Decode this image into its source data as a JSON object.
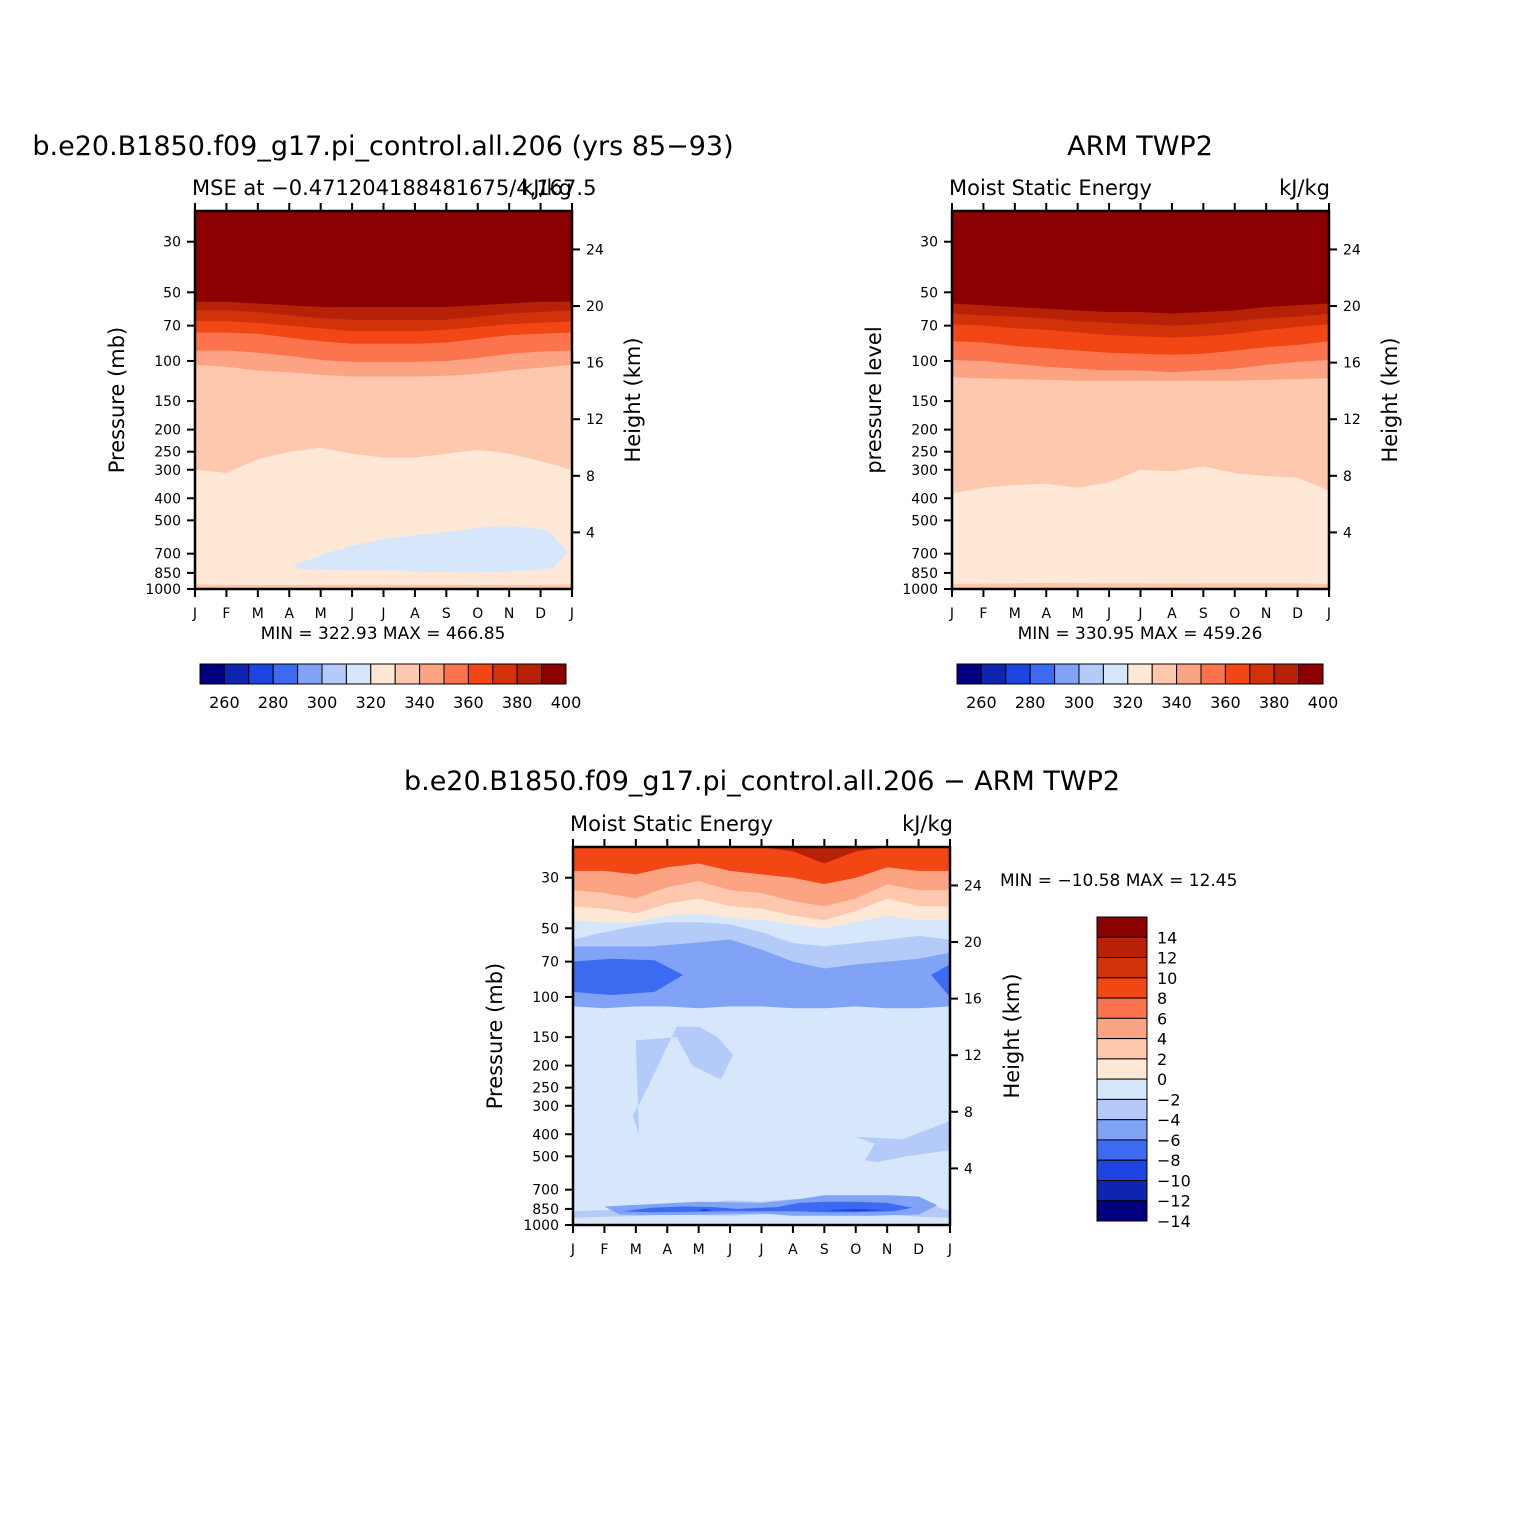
{
  "months": [
    "J",
    "F",
    "M",
    "A",
    "M",
    "J",
    "J",
    "A",
    "S",
    "O",
    "N",
    "D",
    "J"
  ],
  "palette_mse": [
    "#03007f",
    "#0e25b0",
    "#1c44e0",
    "#3c6af0",
    "#80a2f7",
    "#b4caf9",
    "#d6e7fc",
    "#ffe9d6",
    "#fdc8ae",
    "#fca383",
    "#fc744d",
    "#f24614",
    "#d2320a",
    "#b62107",
    "#8b0000"
  ],
  "palette_diff": [
    "#03007f",
    "#0e25b0",
    "#1c44e0",
    "#3c6af0",
    "#80a2f7",
    "#b4caf9",
    "#d6e7fc",
    "#ffe9d6",
    "#fdc8ae",
    "#fca383",
    "#fc744d",
    "#f24614",
    "#d2320a",
    "#b62107",
    "#8b0000"
  ],
  "chart_data": [
    {
      "type": "heatmap",
      "title": "b.e20.B1850.f09_g17.pi_control.all.206 (yrs 85−93)",
      "subtitle_left": "MSE at −0.471204188481675/4,167.5",
      "subtitle_right": "kJ/kg",
      "ylabel": "Pressure (mb)",
      "ylabel_right": "Height (km)",
      "pressure_ticks": [
        30,
        50,
        70,
        100,
        150,
        200,
        250,
        300,
        400,
        500,
        700,
        850,
        1000
      ],
      "height_ticks": [
        24,
        20,
        16,
        12,
        8,
        4
      ],
      "ylim": [
        1000,
        22
      ],
      "stats": "MIN = 322.93 MAX = 466.85",
      "colorbar_labels": [
        "260",
        "280",
        "300",
        "320",
        "340",
        "360",
        "380",
        "400"
      ],
      "bands_mb": [
        {
          "level": 400,
          "p": [
            55,
            55,
            56,
            57,
            58,
            58,
            58,
            58,
            58,
            57,
            56,
            55,
            55
          ]
        },
        {
          "level": 390,
          "p": [
            60,
            60,
            61,
            63,
            65,
            66,
            66,
            66,
            66,
            64,
            62,
            61,
            60
          ]
        },
        {
          "level": 380,
          "p": [
            67,
            67,
            68,
            70,
            72,
            74,
            74,
            74,
            73,
            71,
            69,
            68,
            67
          ]
        },
        {
          "level": 370,
          "p": [
            75,
            75,
            76,
            79,
            82,
            84,
            84,
            84,
            83,
            80,
            77,
            76,
            75
          ]
        },
        {
          "level": 360,
          "p": [
            90,
            90,
            92,
            95,
            99,
            101,
            101,
            101,
            100,
            97,
            93,
            91,
            90
          ]
        },
        {
          "level": 350,
          "p": [
            104,
            106,
            110,
            112,
            115,
            117,
            117,
            117,
            116,
            114,
            110,
            107,
            104
          ]
        },
        {
          "level": 340,
          "p": [
            300,
            310,
            270,
            250,
            240,
            255,
            265,
            265,
            255,
            245,
            255,
            275,
            300
          ]
        },
        {
          "level": 330,
          "p": [
            955,
            958,
            960,
            960,
            958,
            958,
            958,
            958,
            958,
            960,
            960,
            958,
            955
          ]
        }
      ],
      "blob_level": 320,
      "blob_mb": {
        "x": [
          3.1,
          4.1,
          5.2,
          6.1,
          7.1,
          8.1,
          9.1,
          10.1,
          11.2,
          11.9,
          11.4,
          10.2,
          9.2,
          8.2,
          7.2,
          6.2,
          5.2,
          4.1,
          3.3
        ],
        "p": [
          790,
          700,
          635,
          600,
          580,
          560,
          535,
          530,
          550,
          690,
          810,
          835,
          845,
          845,
          840,
          830,
          830,
          825,
          815
        ]
      }
    },
    {
      "type": "heatmap",
      "title": "ARM TWP2",
      "subtitle_left": "Moist Static Energy",
      "subtitle_right": "kJ/kg",
      "ylabel": "pressure level",
      "ylabel_right": "Height (km)",
      "pressure_ticks": [
        30,
        50,
        70,
        100,
        150,
        200,
        250,
        300,
        400,
        500,
        700,
        850,
        1000
      ],
      "height_ticks": [
        24,
        20,
        16,
        12,
        8,
        4
      ],
      "ylim": [
        1000,
        22
      ],
      "stats": "MIN = 330.95 MAX = 459.26",
      "colorbar_labels": [
        "260",
        "280",
        "300",
        "320",
        "340",
        "360",
        "380",
        "400"
      ],
      "bands_mb": [
        {
          "level": 400,
          "p": [
            56,
            57,
            58,
            59,
            60,
            61,
            61,
            62,
            61,
            60,
            58,
            57,
            56
          ]
        },
        {
          "level": 390,
          "p": [
            62,
            63,
            64,
            65,
            67,
            68,
            69,
            70,
            69,
            67,
            65,
            64,
            62
          ]
        },
        {
          "level": 380,
          "p": [
            69,
            70,
            72,
            73,
            75,
            77,
            78,
            79,
            78,
            76,
            73,
            71,
            69
          ]
        },
        {
          "level": 370,
          "p": [
            82,
            83,
            86,
            88,
            90,
            92,
            93,
            94,
            93,
            90,
            87,
            85,
            82
          ]
        },
        {
          "level": 360,
          "p": [
            99,
            100,
            103,
            106,
            108,
            110,
            110,
            112,
            110,
            108,
            104,
            101,
            99
          ]
        },
        {
          "level": 350,
          "p": [
            118,
            119,
            120,
            121,
            122,
            122,
            122,
            122,
            122,
            122,
            121,
            120,
            119
          ]
        },
        {
          "level": 340,
          "p": [
            380,
            360,
            350,
            345,
            360,
            340,
            300,
            305,
            290,
            310,
            320,
            325,
            370
          ]
        },
        {
          "level": 330,
          "p": [
            950,
            947,
            945,
            940,
            942,
            945,
            945,
            946,
            945,
            945,
            945,
            945,
            950
          ]
        }
      ]
    },
    {
      "type": "heatmap",
      "title": "b.e20.B1850.f09_g17.pi_control.all.206 − ARM TWP2",
      "subtitle_left": "Moist Static Energy",
      "subtitle_right": "kJ/kg",
      "ylabel": "Pressure (mb)",
      "ylabel_right": "Height (km)",
      "pressure_ticks": [
        30,
        50,
        70,
        100,
        150,
        200,
        250,
        300,
        400,
        500,
        700,
        850,
        1000
      ],
      "height_ticks": [
        24,
        20,
        16,
        12,
        8,
        4
      ],
      "ylim": [
        1000,
        22
      ],
      "stats": "MIN = −10.58 MAX =  12.45",
      "colorbar_labels": [
        "14",
        "12",
        "10",
        "8",
        "6",
        "4",
        "2",
        "0",
        "−2",
        "−4",
        "−6",
        "−8",
        "−10",
        "−12",
        "−14"
      ],
      "bands_mb": [
        {
          "level": 12,
          "p": [
            22,
            22,
            22,
            22,
            22,
            22,
            22,
            23,
            26,
            23,
            22,
            22,
            22
          ]
        },
        {
          "level": 8,
          "p": [
            28,
            28,
            29,
            27,
            26,
            28,
            29,
            30,
            32,
            30,
            27,
            28,
            28
          ]
        },
        {
          "level": 4,
          "p": [
            34,
            35,
            37,
            33,
            31,
            34,
            35,
            38,
            40,
            37,
            32,
            34,
            34
          ]
        },
        {
          "level": 2,
          "p": [
            40,
            41,
            43,
            39,
            37,
            40,
            41,
            44,
            46,
            42,
            37,
            40,
            40
          ]
        },
        {
          "level": 0,
          "p": [
            46,
            47,
            47,
            44,
            43,
            45,
            46,
            48,
            50,
            47,
            44,
            46,
            46
          ]
        },
        {
          "level": -2,
          "p": [
            56,
            52,
            49,
            47,
            47,
            48,
            52,
            58,
            60,
            58,
            56,
            54,
            56
          ]
        },
        {
          "level": -4,
          "p": [
            110,
            108,
            106,
            105,
            106,
            108,
            107,
            108,
            109,
            109,
            108,
            108,
            110
          ]
        },
        {
          "level": -2,
          "p": [
            870,
            860,
            850,
            820,
            800,
            780,
            790,
            770,
            760,
            760,
            770,
            780,
            870
          ]
        },
        {
          "level": -4,
          "p": [
            930,
            920,
            915,
            900,
            905,
            910,
            900,
            880,
            880,
            880,
            900,
            920,
            930
          ]
        },
        {
          "level": -2,
          "p": [
            975,
            975,
            975,
            975,
            975,
            975,
            975,
            975,
            975,
            975,
            975,
            975,
            975
          ]
        }
      ],
      "features_mb": [
        {
          "level": -4,
          "x": [
            2.0,
            3.3,
            3.8,
            4.7,
            5.1,
            4.6,
            4.0,
            3.3,
            2.2,
            1.9,
            2.1,
            2.0
          ],
          "p": [
            155,
            150,
            200,
            230,
            180,
            150,
            135,
            135,
            280,
            330,
            400,
            155
          ]
        },
        {
          "level": -4,
          "x": [
            9.0,
            10.5,
            12.0,
            12.0,
            10.6,
            9.7,
            9.3,
            9.6,
            9.0
          ],
          "p": [
            410,
            420,
            350,
            470,
            500,
            530,
            520,
            440,
            410
          ]
        },
        {
          "level": -6,
          "x": [
            0,
            1.0,
            2.5,
            3.8,
            5.0,
            6.0,
            7.0,
            8.0,
            9.0,
            10.0,
            11.0,
            12.0,
            12.0,
            11.0,
            10.0,
            9.0,
            8.0,
            7.0,
            6.0,
            5.0,
            4.0,
            3.0,
            2.0,
            1.0,
            0
          ],
          "p": [
            60,
            60,
            60,
            58,
            56,
            62,
            70,
            75,
            72,
            70,
            68,
            64,
            110,
            112,
            112,
            110,
            112,
            112,
            110,
            110,
            112,
            110,
            110,
            112,
            110
          ]
        },
        {
          "level": -8,
          "x": [
            0,
            1.2,
            2.6,
            3.5,
            2.6,
            1.2,
            0
          ],
          "p": [
            70,
            68,
            69,
            80,
            95,
            98,
            95
          ]
        },
        {
          "level": -8,
          "x": [
            11.4,
            12.0,
            12.0
          ],
          "p": [
            80,
            72,
            100
          ]
        },
        {
          "level": -6,
          "x": [
            1.0,
            2.5,
            4.0,
            6.0,
            7.2,
            8.0,
            9.0,
            10.0,
            11.0,
            11.6,
            11.0,
            9.5,
            8.0,
            7.0,
            6.0,
            4.5,
            3.0,
            1.5,
            1.0
          ],
          "p": [
            830,
            810,
            790,
            800,
            770,
            740,
            740,
            740,
            750,
            820,
            900,
            910,
            910,
            910,
            890,
            900,
            905,
            900,
            830
          ]
        },
        {
          "level": -8,
          "x": [
            1.6,
            2.5,
            3.5,
            4.5,
            5.2,
            6.5,
            7.2,
            8.0,
            9.0,
            10.0,
            10.8,
            10.2,
            9.0,
            8.0,
            7.0,
            6.0,
            5.0,
            4.0,
            2.5,
            1.6
          ],
          "p": [
            870,
            840,
            830,
            835,
            850,
            835,
            800,
            790,
            790,
            800,
            840,
            870,
            880,
            880,
            870,
            870,
            870,
            875,
            880,
            870
          ]
        },
        {
          "level": -10,
          "x": [
            4.0,
            4.2,
            4.4,
            4.2
          ],
          "p": [
            860,
            850,
            860,
            870
          ]
        },
        {
          "level": -10,
          "x": [
            8.0,
            9.0,
            10.0,
            9.0
          ],
          "p": [
            860,
            850,
            860,
            870
          ]
        }
      ]
    }
  ]
}
